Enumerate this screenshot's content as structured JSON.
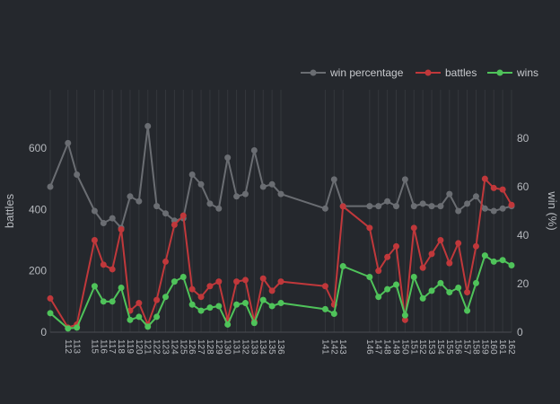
{
  "chart_data": {
    "type": "line",
    "x": [
      110,
      112,
      113,
      115,
      116,
      117,
      118,
      119,
      120,
      121,
      122,
      123,
      124,
      125,
      126,
      127,
      128,
      129,
      130,
      131,
      132,
      133,
      134,
      135,
      136,
      141,
      142,
      143,
      146,
      147,
      148,
      149,
      150,
      151,
      152,
      153,
      154,
      155,
      156,
      157,
      158,
      159,
      160,
      161,
      162
    ],
    "x_tick_labels": [
      "112",
      "113",
      "115",
      "116",
      "117",
      "118",
      "119",
      "120",
      "121",
      "122",
      "123",
      "124",
      "125",
      "126",
      "127",
      "128",
      "129",
      "130",
      "131",
      "132",
      "133",
      "134",
      "135",
      "136",
      "141",
      "142",
      "143",
      "146",
      "147",
      "148",
      "149",
      "150",
      "151",
      "152",
      "153",
      "154",
      "155",
      "156",
      "157",
      "158",
      "159",
      "160",
      "161",
      "162"
    ],
    "series": [
      {
        "name": "win percentage",
        "axis": "right",
        "color": "#6a6d72",
        "values": [
          60,
          78,
          65,
          50,
          45,
          47,
          43,
          56,
          54,
          85,
          52,
          49,
          46,
          47,
          65,
          61,
          53,
          51,
          72,
          56,
          57,
          75,
          60,
          61,
          57,
          51,
          63,
          52,
          52,
          52,
          54,
          52,
          63,
          52,
          53,
          52,
          52,
          57,
          50,
          53,
          56,
          51,
          50,
          51,
          52
        ]
      },
      {
        "name": "battles",
        "axis": "left",
        "color": "#c0383b",
        "values": [
          110,
          15,
          25,
          300,
          220,
          205,
          335,
          70,
          95,
          25,
          105,
          230,
          350,
          380,
          140,
          115,
          150,
          165,
          40,
          165,
          170,
          35,
          175,
          135,
          165,
          150,
          90,
          410,
          340,
          200,
          245,
          280,
          40,
          340,
          210,
          255,
          300,
          225,
          290,
          130,
          280,
          500,
          470,
          465,
          415
        ]
      },
      {
        "name": "wins",
        "axis": "left",
        "color": "#4fc35a",
        "values": [
          62,
          12,
          15,
          150,
          100,
          100,
          145,
          40,
          50,
          18,
          50,
          115,
          165,
          180,
          90,
          70,
          80,
          85,
          25,
          90,
          95,
          30,
          105,
          85,
          95,
          75,
          60,
          215,
          180,
          115,
          140,
          155,
          55,
          180,
          110,
          135,
          160,
          130,
          145,
          70,
          160,
          250,
          230,
          235,
          218
        ]
      }
    ],
    "ylabel": "battles",
    "y2label": "win (%)",
    "ylim": [
      0,
      800
    ],
    "y2lim": [
      0,
      100
    ],
    "y_ticks": [
      0,
      200,
      400,
      600
    ],
    "y2_ticks": [
      0,
      20,
      40,
      60,
      80
    ],
    "grid": true,
    "legend_position": "top-right"
  }
}
